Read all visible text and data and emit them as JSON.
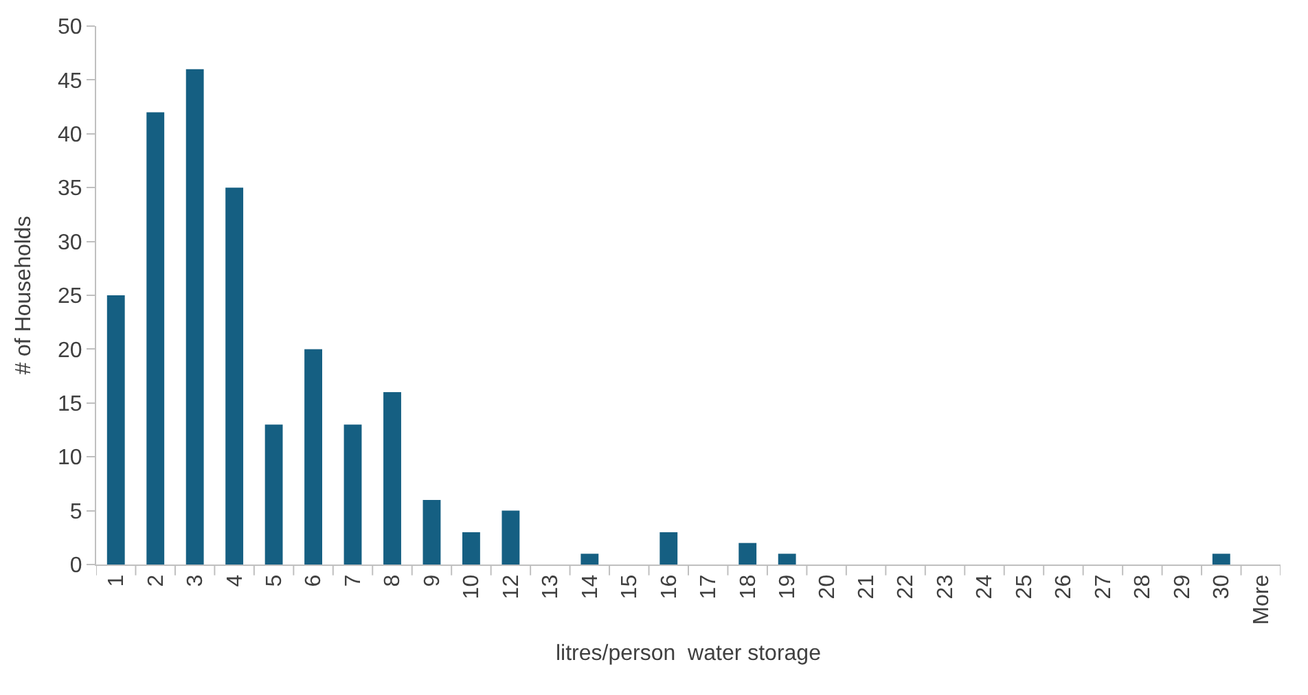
{
  "chart_data": {
    "type": "bar",
    "xlabel": "litres/person  water storage",
    "ylabel": "# of Households",
    "categories": [
      "1",
      "2",
      "3",
      "4",
      "5",
      "6",
      "7",
      "8",
      "9",
      "10",
      "12",
      "13",
      "14",
      "15",
      "16",
      "17",
      "18",
      "19",
      "20",
      "21",
      "22",
      "23",
      "24",
      "25",
      "26",
      "27",
      "28",
      "29",
      "30",
      "More"
    ],
    "values": [
      25,
      42,
      46,
      35,
      13,
      20,
      13,
      16,
      6,
      3,
      5,
      0,
      1,
      0,
      3,
      0,
      2,
      1,
      0,
      0,
      0,
      0,
      0,
      0,
      0,
      0,
      0,
      0,
      1,
      0
    ],
    "color": "#155f82",
    "ylim": [
      0,
      50
    ],
    "yticks": [
      0,
      5,
      10,
      15,
      20,
      25,
      30,
      35,
      40,
      45,
      50
    ]
  }
}
